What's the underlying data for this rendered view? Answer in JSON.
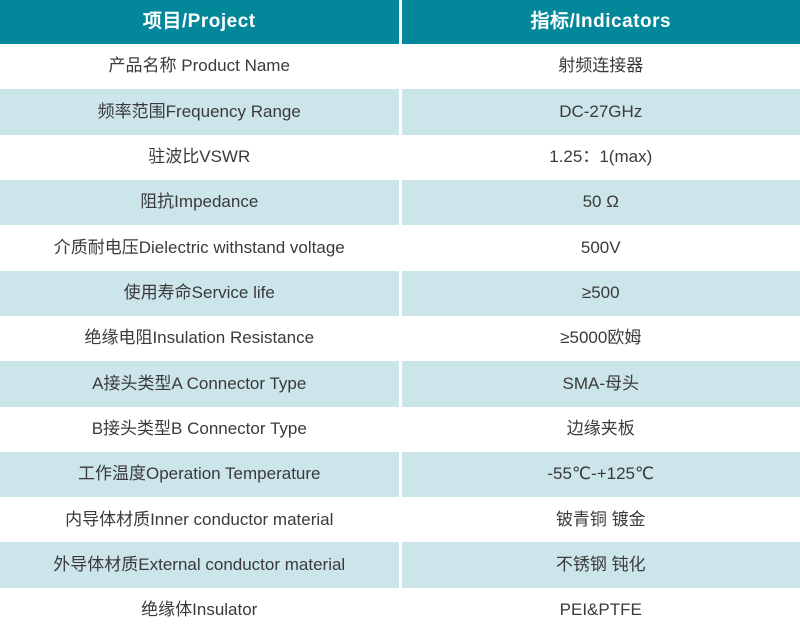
{
  "colors": {
    "header_bg": "#02879b",
    "header_text": "#ffffff",
    "row_bg": "#ffffff",
    "row_alt_bg": "#cbe5ea",
    "body_text": "#3a3a3a"
  },
  "table": {
    "headers": [
      {
        "label": "项目/Project"
      },
      {
        "label": "指标/Indicators"
      }
    ],
    "rows": [
      {
        "project": "产品名称 Product Name",
        "indicator": "射频连接器"
      },
      {
        "project": "频率范围Frequency Range",
        "indicator": "DC-27GHz"
      },
      {
        "project": "驻波比VSWR",
        "indicator": "1.25：1(max)"
      },
      {
        "project": "阻抗Impedance",
        "indicator": "50 Ω"
      },
      {
        "project": "介质耐电压Dielectric withstand voltage",
        "indicator": "500V"
      },
      {
        "project": "使用寿命Service life",
        "indicator": "≥500"
      },
      {
        "project": "绝缘电阻Insulation Resistance",
        "indicator": "≥5000欧姆"
      },
      {
        "project": "A接头类型A Connector Type",
        "indicator": "SMA-母头"
      },
      {
        "project": "B接头类型B Connector Type",
        "indicator": "边缘夹板"
      },
      {
        "project": "工作温度Operation Temperature",
        "indicator": "-55℃-+125℃"
      },
      {
        "project": "内导体材质Inner conductor material",
        "indicator": "铍青铜 镀金"
      },
      {
        "project": "外导体材质External conductor material",
        "indicator": "不锈钢 钝化"
      },
      {
        "project": "绝缘体Insulator",
        "indicator": "PEI&PTFE"
      }
    ]
  }
}
